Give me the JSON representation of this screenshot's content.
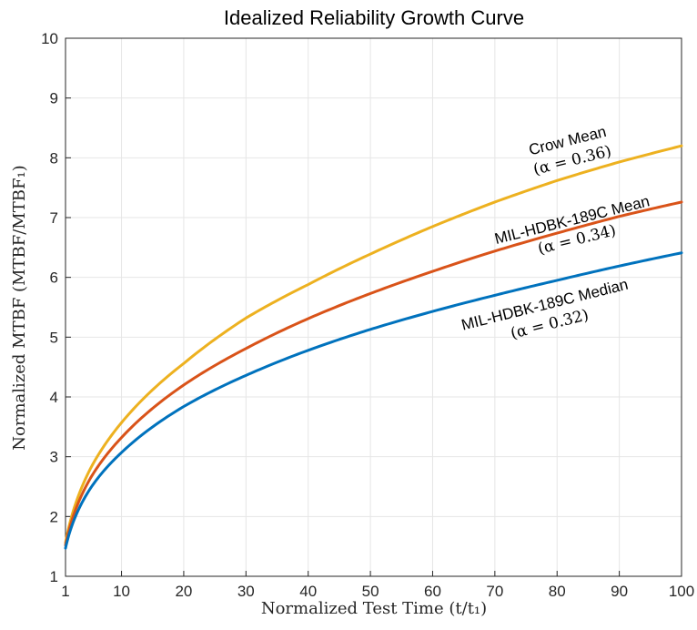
{
  "chart_data": {
    "type": "line",
    "title": "Idealized Reliability Growth Curve",
    "xlabel": "Normalized Test Time (t/t₁)",
    "ylabel": "Normalized MTBF (MTBF/MTBF₁)",
    "xlim": [
      1,
      100
    ],
    "ylim": [
      1,
      10
    ],
    "xticks": [
      1,
      10,
      20,
      30,
      40,
      50,
      60,
      70,
      80,
      90,
      100
    ],
    "yticks": [
      1,
      2,
      3,
      4,
      5,
      6,
      7,
      8,
      9,
      10
    ],
    "grid": true,
    "series": [
      {
        "name": "Crow Mean",
        "alpha_label": "(α = 0.36)",
        "color": "#EDB120",
        "x": [
          1,
          5,
          10,
          20,
          30,
          40,
          50,
          60,
          70,
          80,
          90,
          100
        ],
        "y": [
          1.56,
          2.8,
          3.57,
          4.56,
          5.32,
          5.88,
          6.39,
          6.85,
          7.26,
          7.62,
          7.93,
          8.2
        ]
      },
      {
        "name": "MIL-HDBK-189C Mean",
        "alpha_label": "(α = 0.34)",
        "color": "#D95319",
        "x": [
          1,
          5,
          10,
          20,
          30,
          40,
          50,
          60,
          70,
          80,
          90,
          100
        ],
        "y": [
          1.52,
          2.64,
          3.32,
          4.2,
          4.81,
          5.31,
          5.73,
          6.1,
          6.44,
          6.74,
          7.02,
          7.26
        ]
      },
      {
        "name": "MIL-HDBK-189C Median",
        "alpha_label": "(α = 0.32)",
        "color": "#0072BD",
        "x": [
          1,
          5,
          10,
          20,
          30,
          40,
          50,
          60,
          70,
          80,
          90,
          100
        ],
        "y": [
          1.47,
          2.47,
          3.07,
          3.84,
          4.36,
          4.78,
          5.13,
          5.43,
          5.7,
          5.95,
          6.19,
          6.41
        ]
      }
    ]
  }
}
